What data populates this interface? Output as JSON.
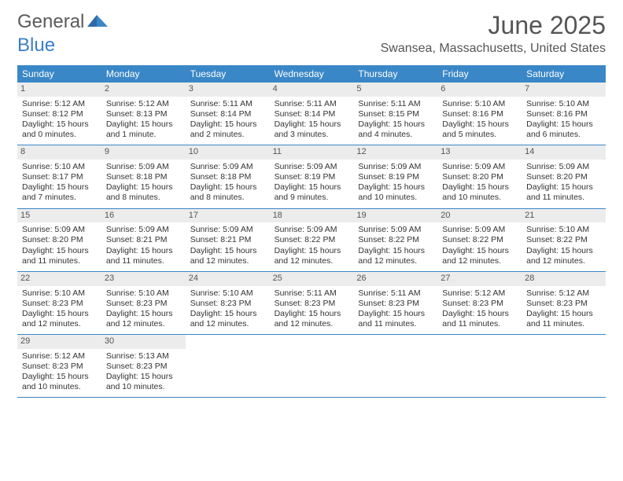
{
  "brand": {
    "general": "General",
    "blue": "Blue"
  },
  "title": "June 2025",
  "location": "Swansea, Massachusetts, United States",
  "colors": {
    "header_bg": "#3a87c7",
    "header_text": "#ffffff",
    "daynum_bg": "#ececec",
    "border": "#3a87c7",
    "body_text": "#333333",
    "title_text": "#555555",
    "logo_gray": "#5a5a5a",
    "logo_blue": "#3a7fc4",
    "page_bg": "#ffffff"
  },
  "day_headers": [
    "Sunday",
    "Monday",
    "Tuesday",
    "Wednesday",
    "Thursday",
    "Friday",
    "Saturday"
  ],
  "weeks": [
    [
      {
        "n": "1",
        "sr": "5:12 AM",
        "ss": "8:12 PM",
        "dh": "15",
        "dm": "0"
      },
      {
        "n": "2",
        "sr": "5:12 AM",
        "ss": "8:13 PM",
        "dh": "15",
        "dm": "1"
      },
      {
        "n": "3",
        "sr": "5:11 AM",
        "ss": "8:14 PM",
        "dh": "15",
        "dm": "2"
      },
      {
        "n": "4",
        "sr": "5:11 AM",
        "ss": "8:14 PM",
        "dh": "15",
        "dm": "3"
      },
      {
        "n": "5",
        "sr": "5:11 AM",
        "ss": "8:15 PM",
        "dh": "15",
        "dm": "4"
      },
      {
        "n": "6",
        "sr": "5:10 AM",
        "ss": "8:16 PM",
        "dh": "15",
        "dm": "5"
      },
      {
        "n": "7",
        "sr": "5:10 AM",
        "ss": "8:16 PM",
        "dh": "15",
        "dm": "6"
      }
    ],
    [
      {
        "n": "8",
        "sr": "5:10 AM",
        "ss": "8:17 PM",
        "dh": "15",
        "dm": "7"
      },
      {
        "n": "9",
        "sr": "5:09 AM",
        "ss": "8:18 PM",
        "dh": "15",
        "dm": "8"
      },
      {
        "n": "10",
        "sr": "5:09 AM",
        "ss": "8:18 PM",
        "dh": "15",
        "dm": "8"
      },
      {
        "n": "11",
        "sr": "5:09 AM",
        "ss": "8:19 PM",
        "dh": "15",
        "dm": "9"
      },
      {
        "n": "12",
        "sr": "5:09 AM",
        "ss": "8:19 PM",
        "dh": "15",
        "dm": "10"
      },
      {
        "n": "13",
        "sr": "5:09 AM",
        "ss": "8:20 PM",
        "dh": "15",
        "dm": "10"
      },
      {
        "n": "14",
        "sr": "5:09 AM",
        "ss": "8:20 PM",
        "dh": "15",
        "dm": "11"
      }
    ],
    [
      {
        "n": "15",
        "sr": "5:09 AM",
        "ss": "8:20 PM",
        "dh": "15",
        "dm": "11"
      },
      {
        "n": "16",
        "sr": "5:09 AM",
        "ss": "8:21 PM",
        "dh": "15",
        "dm": "11"
      },
      {
        "n": "17",
        "sr": "5:09 AM",
        "ss": "8:21 PM",
        "dh": "15",
        "dm": "12"
      },
      {
        "n": "18",
        "sr": "5:09 AM",
        "ss": "8:22 PM",
        "dh": "15",
        "dm": "12"
      },
      {
        "n": "19",
        "sr": "5:09 AM",
        "ss": "8:22 PM",
        "dh": "15",
        "dm": "12"
      },
      {
        "n": "20",
        "sr": "5:09 AM",
        "ss": "8:22 PM",
        "dh": "15",
        "dm": "12"
      },
      {
        "n": "21",
        "sr": "5:10 AM",
        "ss": "8:22 PM",
        "dh": "15",
        "dm": "12"
      }
    ],
    [
      {
        "n": "22",
        "sr": "5:10 AM",
        "ss": "8:23 PM",
        "dh": "15",
        "dm": "12"
      },
      {
        "n": "23",
        "sr": "5:10 AM",
        "ss": "8:23 PM",
        "dh": "15",
        "dm": "12"
      },
      {
        "n": "24",
        "sr": "5:10 AM",
        "ss": "8:23 PM",
        "dh": "15",
        "dm": "12"
      },
      {
        "n": "25",
        "sr": "5:11 AM",
        "ss": "8:23 PM",
        "dh": "15",
        "dm": "12"
      },
      {
        "n": "26",
        "sr": "5:11 AM",
        "ss": "8:23 PM",
        "dh": "15",
        "dm": "11"
      },
      {
        "n": "27",
        "sr": "5:12 AM",
        "ss": "8:23 PM",
        "dh": "15",
        "dm": "11"
      },
      {
        "n": "28",
        "sr": "5:12 AM",
        "ss": "8:23 PM",
        "dh": "15",
        "dm": "11"
      }
    ],
    [
      {
        "n": "29",
        "sr": "5:12 AM",
        "ss": "8:23 PM",
        "dh": "15",
        "dm": "10"
      },
      {
        "n": "30",
        "sr": "5:13 AM",
        "ss": "8:23 PM",
        "dh": "15",
        "dm": "10"
      },
      null,
      null,
      null,
      null,
      null
    ]
  ],
  "labels": {
    "sunrise": "Sunrise: ",
    "sunset": "Sunset: ",
    "daylight_prefix": "Daylight: ",
    "hours": " hours",
    "and": "and ",
    "minute_singular": " minute.",
    "minutes_plural": " minutes."
  }
}
